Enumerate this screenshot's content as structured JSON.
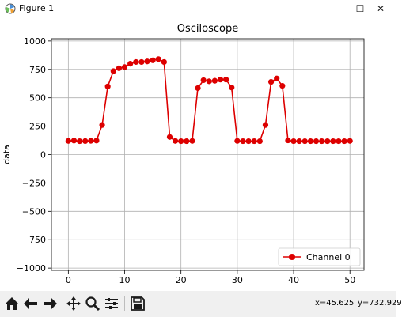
{
  "window": {
    "title": "Figure 1",
    "minimize_glyph": "–",
    "maximize_glyph": "☐",
    "close_glyph": "✕"
  },
  "toolbar": {
    "icons": [
      "home-icon",
      "back-arrow-icon",
      "forward-arrow-icon",
      "pan-icon",
      "zoom-icon",
      "configure-subplots-icon",
      "save-icon"
    ],
    "x_readout": "x=45.625",
    "y_readout": "y=732.929"
  },
  "colors": {
    "series": "#dd0000",
    "grid": "#b0b0b0",
    "axes": "#000000"
  },
  "chart_data": {
    "type": "line",
    "title": "Osciloscope",
    "xlabel": "",
    "ylabel": "data",
    "xlim": [
      -3,
      52.5
    ],
    "ylim": [
      -1020,
      1020
    ],
    "xticks": [
      0,
      10,
      20,
      30,
      40,
      50
    ],
    "yticks": [
      1000,
      750,
      500,
      250,
      0,
      -250,
      -500,
      -750,
      -1000
    ],
    "grid": true,
    "legend_position": "lower-right",
    "series": [
      {
        "name": "Channel 0",
        "marker": "circle",
        "x": [
          0,
          1,
          2,
          3,
          4,
          5,
          6,
          7,
          8,
          9,
          10,
          11,
          12,
          13,
          14,
          15,
          16,
          17,
          18,
          19,
          20,
          21,
          22,
          23,
          24,
          25,
          26,
          27,
          28,
          29,
          30,
          31,
          32,
          33,
          34,
          35,
          36,
          37,
          38,
          39,
          40,
          41,
          42,
          43,
          44,
          45,
          46,
          47,
          48,
          49,
          50
        ],
        "values": [
          120,
          123,
          118,
          119,
          121,
          123,
          260,
          600,
          735,
          760,
          770,
          800,
          815,
          815,
          820,
          830,
          840,
          815,
          155,
          120,
          118,
          118,
          120,
          585,
          655,
          645,
          650,
          660,
          660,
          590,
          120,
          118,
          118,
          118,
          118,
          260,
          640,
          670,
          605,
          125,
          118,
          118,
          118,
          118,
          118,
          118,
          118,
          118,
          118,
          118,
          120
        ]
      }
    ]
  }
}
